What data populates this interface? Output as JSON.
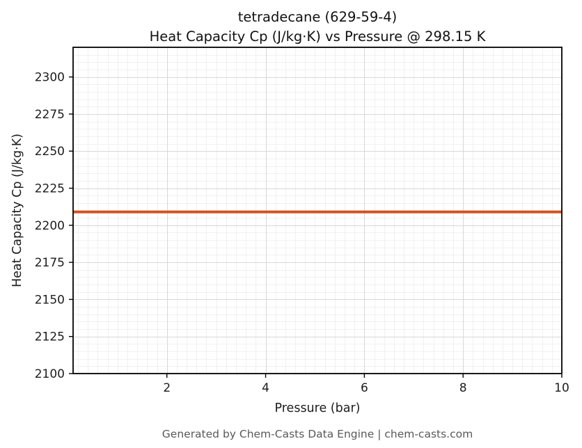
{
  "chart_data": {
    "type": "line",
    "title": "tetradecane (629-59-4) — Heat Capacity Cp (J/kg·K) vs Pressure @ 298.15 K",
    "title_line1": "tetradecane (629-59-4)",
    "title_line2": "Heat Capacity Cp (J/kg·K) vs Pressure @ 298.15 K",
    "xlabel": "Pressure (bar)",
    "ylabel": "Heat Capacity Cp (J/kg·K)",
    "xlim": [
      0.1,
      10
    ],
    "ylim": [
      2100,
      2320
    ],
    "x_ticks": [
      2,
      4,
      6,
      8,
      10
    ],
    "y_ticks": [
      2100,
      2125,
      2150,
      2175,
      2200,
      2225,
      2250,
      2275,
      2300
    ],
    "minor_x_step": 0.2,
    "minor_y_step": 5,
    "grid": true,
    "legend": false,
    "series": [
      {
        "name": "Cp",
        "color": "#d2521e",
        "x": [
          0.1,
          1,
          2,
          3,
          4,
          5,
          6,
          7,
          8,
          9,
          10
        ],
        "y": [
          2209,
          2209,
          2209,
          2209,
          2209,
          2209,
          2209,
          2209,
          2209,
          2209,
          2209
        ]
      }
    ]
  },
  "footer": {
    "text": "Generated by Chem-Casts Data Engine | chem-casts.com"
  },
  "colors": {
    "line": "#d2521e",
    "grid_major": "#d8d8d8",
    "grid_minor": "#ececec",
    "axis": "#000000",
    "tick_label": "#1c1c1c",
    "footer_text": "#595959"
  }
}
